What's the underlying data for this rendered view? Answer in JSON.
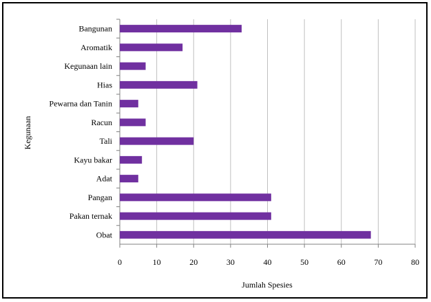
{
  "chart_data": {
    "type": "bar",
    "orientation": "horizontal",
    "categories": [
      "Bangunan",
      "Aromatik",
      "Kegunaan lain",
      "Hias",
      "Pewarna dan Tanin",
      "Racun",
      "Tali",
      "Kayu bakar",
      "Adat",
      "Pangan",
      "Pakan ternak",
      "Obat"
    ],
    "values": [
      33,
      17,
      7,
      21,
      5,
      7,
      20,
      6,
      5,
      41,
      41,
      68
    ],
    "title": "",
    "xlabel": "Jumlah Spesies",
    "ylabel": "Kegunaan",
    "xlim": [
      0,
      80
    ],
    "xticks": [
      "0",
      "10",
      "20",
      "30",
      "40",
      "50",
      "60",
      "70",
      "80"
    ],
    "grid": true,
    "legend": "none",
    "bar_color": "#7030a0",
    "grid_color": "#bfbfbf"
  }
}
